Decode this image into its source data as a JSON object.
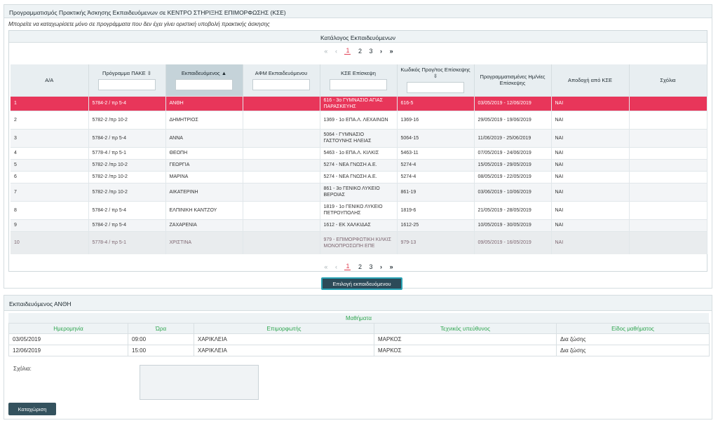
{
  "header": {
    "title": "Προγραμματισμός Πρακτικής Άσκησης Εκπαιδευόμενων σε ΚΕΝΤΡΟ ΣΤΗΡΙΞΗΣ ΕΠΙΜΟΡΦΩΣΗΣ (ΚΣΕ)",
    "note": "Μπορείτε να καταχωρίσετε μόνο σε προγράμματα που δεν έχει γίνει οριστική υποβολή πρακτικής άσκησης"
  },
  "list": {
    "title": "Κατάλογος Εκπαιδευόμενων",
    "pager": {
      "first": "«",
      "prev": "‹",
      "pages": [
        "1",
        "2",
        "3"
      ],
      "current": "1",
      "next": "›",
      "last": "»"
    },
    "columns": [
      "Α/Α",
      "Πρόγραμμα ΠΑΚΕ",
      "Εκπαιδευόμενος",
      "ΑΦΜ Εκπαιδευόμενου",
      "ΚΣΕ Επίσκεψη",
      "Κωδικός Προγ/τος Επίσκεψης",
      "Προγραμματισμένες Ημ/νίες Επίσκεψης",
      "Αποδοχή από ΚΣΕ",
      "Σχόλια"
    ],
    "rows": [
      {
        "aa": "1",
        "program": "5784-2 / πρ 5-4",
        "trainee": "ΑΝΘΗ",
        "afm": "",
        "kse": "616 - 3ο ΓΥΜΝΑΣΙΟ ΑΓΙΑΣ ΠΑΡΑΣΚΕΥΗΣ",
        "code": "616-5",
        "dates": "03/05/2019 - 12/06/2019",
        "accept": "ΝΑΙ",
        "comments": ""
      },
      {
        "aa": "2",
        "program": "5782-2 /πρ 10-2",
        "trainee": "ΔΗΜΗΤΡΙΟΣ",
        "afm": "",
        "kse": "1369 - 1ο ΕΠΑ.Λ. ΛΕΧΑΙΝΩΝ",
        "code": "1369-16",
        "dates": "29/05/2019 - 19/06/2019",
        "accept": "ΝΑΙ",
        "comments": ""
      },
      {
        "aa": "3",
        "program": "5784-2 / πρ 5-4",
        "trainee": "ΑΝΝΑ",
        "afm": "",
        "kse": "5064 - ΓΥΜΝΑΣΙΟ ΓΑΣΤΟΥΝΗΣ ΗΛΕΙΑΣ",
        "code": "5064-15",
        "dates": "11/06/2019 - 25/06/2019",
        "accept": "ΝΑΙ",
        "comments": ""
      },
      {
        "aa": "4",
        "program": "5778-4 / πρ 5-1",
        "trainee": "ΘΕΟΠΗ",
        "afm": "",
        "kse": "5463 - 1ο ΕΠΑ.Λ. ΚΙΛΚΙΣ",
        "code": "5463-11",
        "dates": "07/05/2019 - 24/06/2019",
        "accept": "ΝΑΙ",
        "comments": ""
      },
      {
        "aa": "5",
        "program": "5782-2 /πρ 10-2",
        "trainee": "ΓΕΩΡΓΙΑ",
        "afm": "",
        "kse": "5274 - ΝΕΑ ΓΝΩΣΗ Α.Ε.",
        "code": "5274-4",
        "dates": "15/05/2019 - 29/05/2019",
        "accept": "ΝΑΙ",
        "comments": ""
      },
      {
        "aa": "6",
        "program": "5782-2 /πρ 10-2",
        "trainee": "ΜΑΡΙΝΑ",
        "afm": "",
        "kse": "5274 - ΝΕΑ ΓΝΩΣΗ Α.Ε.",
        "code": "5274-4",
        "dates": "08/05/2019 - 22/05/2019",
        "accept": "ΝΑΙ",
        "comments": ""
      },
      {
        "aa": "7",
        "program": "5782-2 /πρ 10-2",
        "trainee": "ΑΙΚΑΤΕΡΙΝΗ",
        "afm": "",
        "kse": "861 - 3ο ΓΕΝΙΚΟ ΛΥΚΕΙΟ ΒΕΡΟΙΑΣ",
        "code": "861-19",
        "dates": "03/06/2019 - 10/06/2019",
        "accept": "ΝΑΙ",
        "comments": ""
      },
      {
        "aa": "8",
        "program": "5784-2 / πρ 5-4",
        "trainee": "ΕΛΠΙΝΙΚΗ ΚΑΝΤΖΟΥ",
        "afm": "",
        "kse": "1819 - 1ο ΓΕΝΙΚΟ ΛΥΚΕΙΟ ΠΕΤΡΟΥΠΟΛΗΣ",
        "code": "1819-6",
        "dates": "21/05/2019 - 28/05/2019",
        "accept": "ΝΑΙ",
        "comments": ""
      },
      {
        "aa": "9",
        "program": "5784-2 / πρ 5-4",
        "trainee": "ΖΑΧΑΡΕΝΙΑ",
        "afm": "",
        "kse": "1612 - ΕΚ ΧΑΛΚΙΔΑΣ",
        "code": "1612-25",
        "dates": "10/05/2019 - 30/05/2019",
        "accept": "ΝΑΙ",
        "comments": ""
      },
      {
        "aa": "10",
        "program": "5778-4 / πρ 5-1",
        "trainee": "ΧΡΙΣΤΙΝΑ",
        "afm": "",
        "kse": "979 - ΕΠΙΜΟΡΦΩΤΙΚΗ ΚΙΛΚΙΣ ΜΟΝΟΠΡΟΣΩΠΗ ΕΠΕ",
        "code": "979-13",
        "dates": "09/05/2019 - 16/05/2019",
        "accept": "ΝΑΙ",
        "comments": ""
      }
    ],
    "select_button": "Επιλογή εκπαιδευόμενου"
  },
  "detail": {
    "title": "Εκπαιδευόμενος ΑΝΘΗ",
    "lessons_title": "Μαθήματα",
    "columns": [
      "Ημερομηνία",
      "Ώρα",
      "Επιμορφωτής",
      "Τεχνικός υπεύθυνος",
      "Είδος μαθήματος"
    ],
    "rows": [
      {
        "date": "03/05/2019",
        "time": "09:00",
        "trainer": "ΧΑΡΙΚΛΕΙΑ",
        "tech": "ΜΑΡΚΟΣ",
        "type": "Δια ζώσης"
      },
      {
        "date": "12/06/2019",
        "time": "15:00",
        "trainer": "ΧΑΡΙΚΛΕΙΑ",
        "tech": "ΜΑΡΚΟΣ",
        "type": "Δια ζώσης"
      }
    ],
    "comments_label": "Σχόλια:",
    "save_button": "Καταχώριση"
  },
  "colors": {
    "selected_row": "#e8365a",
    "lessons_header": "#2ea54f",
    "button_bg": "#2c4a58",
    "pager_active": "#e03b4f"
  }
}
